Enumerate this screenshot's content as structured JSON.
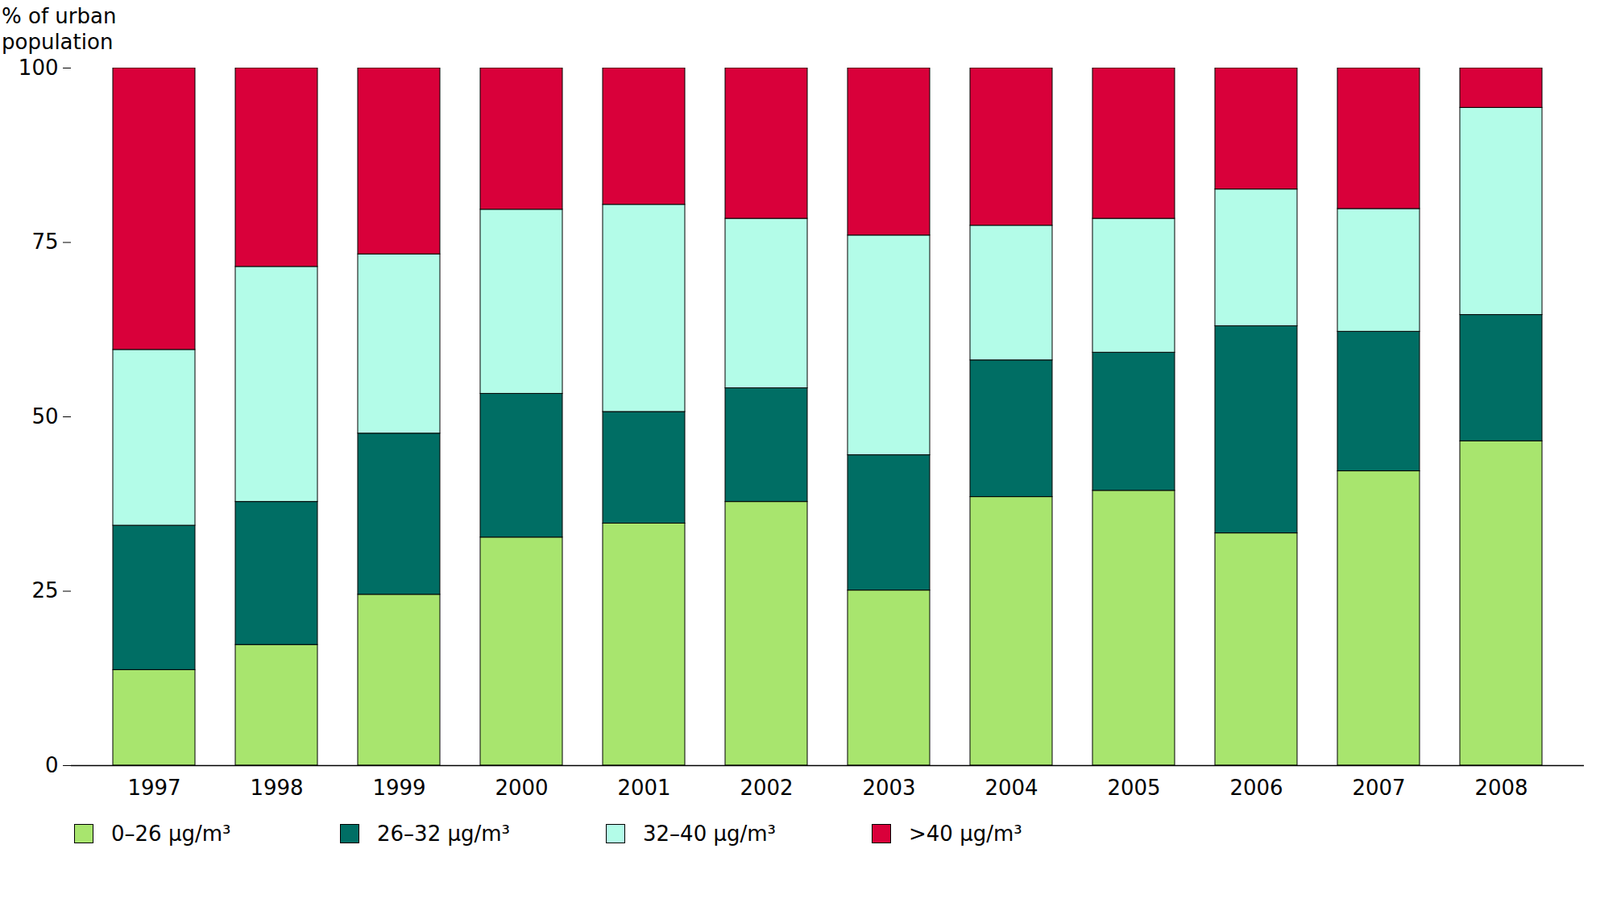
{
  "chart_data": {
    "type": "bar",
    "stacked": true,
    "y_label": "% of urban population",
    "categories": [
      "1997",
      "1998",
      "1999",
      "2000",
      "2001",
      "2002",
      "2003",
      "2004",
      "2005",
      "2006",
      "2007",
      "2008"
    ],
    "series": [
      {
        "name": "0–26 µg/m³",
        "color": "#a8e56e",
        "values": [
          13.7,
          17.3,
          24.5,
          32.7,
          34.7,
          37.8,
          25.1,
          38.5,
          39.4,
          33.3,
          42.2,
          46.5
        ]
      },
      {
        "name": "26–32 µg/m³",
        "color": "#006e64",
        "values": [
          20.7,
          20.5,
          23.1,
          20.6,
          16.0,
          16.3,
          19.4,
          19.6,
          19.8,
          29.7,
          20.0,
          18.1
        ]
      },
      {
        "name": "32–40 µg/m³",
        "color": "#b3fce8",
        "values": [
          25.2,
          33.7,
          25.7,
          26.4,
          29.7,
          24.3,
          31.5,
          19.3,
          19.2,
          19.6,
          17.6,
          29.7
        ]
      },
      {
        "name": ">40 µg/m³",
        "color": "#d9003a",
        "values": [
          40.4,
          28.5,
          26.7,
          20.3,
          19.6,
          21.6,
          24.0,
          22.6,
          21.6,
          17.4,
          20.2,
          5.7
        ]
      }
    ],
    "ylim": [
      0,
      100
    ],
    "yticks": [
      0,
      25,
      50,
      75,
      100
    ],
    "grid": false,
    "legend": "bottom"
  }
}
